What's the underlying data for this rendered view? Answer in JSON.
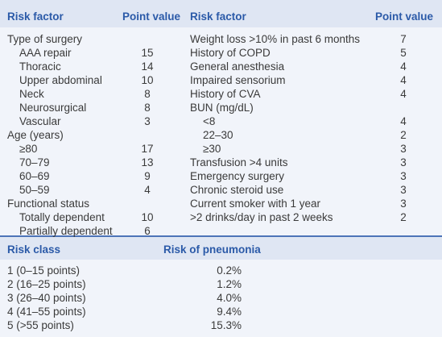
{
  "header": {
    "risk_factor": "Risk factor",
    "point_value": "Point value"
  },
  "left": [
    {
      "label": "Type of surgery",
      "indent": 0,
      "points": ""
    },
    {
      "label": "AAA repair",
      "indent": 1,
      "points": "15"
    },
    {
      "label": "Thoracic",
      "indent": 1,
      "points": "14"
    },
    {
      "label": "Upper abdominal",
      "indent": 1,
      "points": "10"
    },
    {
      "label": "Neck",
      "indent": 1,
      "points": "8"
    },
    {
      "label": "Neurosurgical",
      "indent": 1,
      "points": "8"
    },
    {
      "label": "Vascular",
      "indent": 1,
      "points": "3"
    },
    {
      "label": "Age (years)",
      "indent": 0,
      "points": ""
    },
    {
      "label": "≥80",
      "indent": 1,
      "points": "17"
    },
    {
      "label": "70–79",
      "indent": 1,
      "points": "13"
    },
    {
      "label": "60–69",
      "indent": 1,
      "points": "9"
    },
    {
      "label": "50–59",
      "indent": 1,
      "points": "4"
    },
    {
      "label": "Functional status",
      "indent": 0,
      "points": ""
    },
    {
      "label": "Totally dependent",
      "indent": 1,
      "points": "10"
    },
    {
      "label": "Partially dependent",
      "indent": 1,
      "points": "6"
    }
  ],
  "right": [
    {
      "label": "Weight loss >10% in past 6 months",
      "indent": 0,
      "points": "7"
    },
    {
      "label": "History of COPD",
      "indent": 0,
      "points": "5"
    },
    {
      "label": "General anesthesia",
      "indent": 0,
      "points": "4"
    },
    {
      "label": "Impaired sensorium",
      "indent": 0,
      "points": "4"
    },
    {
      "label": "History of CVA",
      "indent": 0,
      "points": "4"
    },
    {
      "label": "BUN (mg/dL)",
      "indent": 0,
      "points": ""
    },
    {
      "label": "<8",
      "indent": 1,
      "points": "4"
    },
    {
      "label": "22–30",
      "indent": 1,
      "points": "2"
    },
    {
      "label": "≥30",
      "indent": 1,
      "points": "3"
    },
    {
      "label": "Transfusion >4 units",
      "indent": 0,
      "points": "3"
    },
    {
      "label": "Emergency surgery",
      "indent": 0,
      "points": "3"
    },
    {
      "label": "Chronic steroid use",
      "indent": 0,
      "points": "3"
    },
    {
      "label": "Current smoker with 1 year",
      "indent": 0,
      "points": "3"
    },
    {
      "label": ">2 drinks/day in past 2 weeks",
      "indent": 0,
      "points": "2"
    }
  ],
  "risk_header": {
    "risk_class": "Risk class",
    "risk_of_pneumonia": "Risk of pneumonia"
  },
  "risk_rows": [
    {
      "class": "1 (0–15 points)",
      "risk": "0.2%"
    },
    {
      "class": "2 (16–25 points)",
      "risk": "1.2%"
    },
    {
      "class": "3 (26–40 points)",
      "risk": "4.0%"
    },
    {
      "class": "4 (41–55 points)",
      "risk": "9.4%"
    },
    {
      "class": "5 (>55 points)",
      "risk": "15.3%"
    }
  ]
}
